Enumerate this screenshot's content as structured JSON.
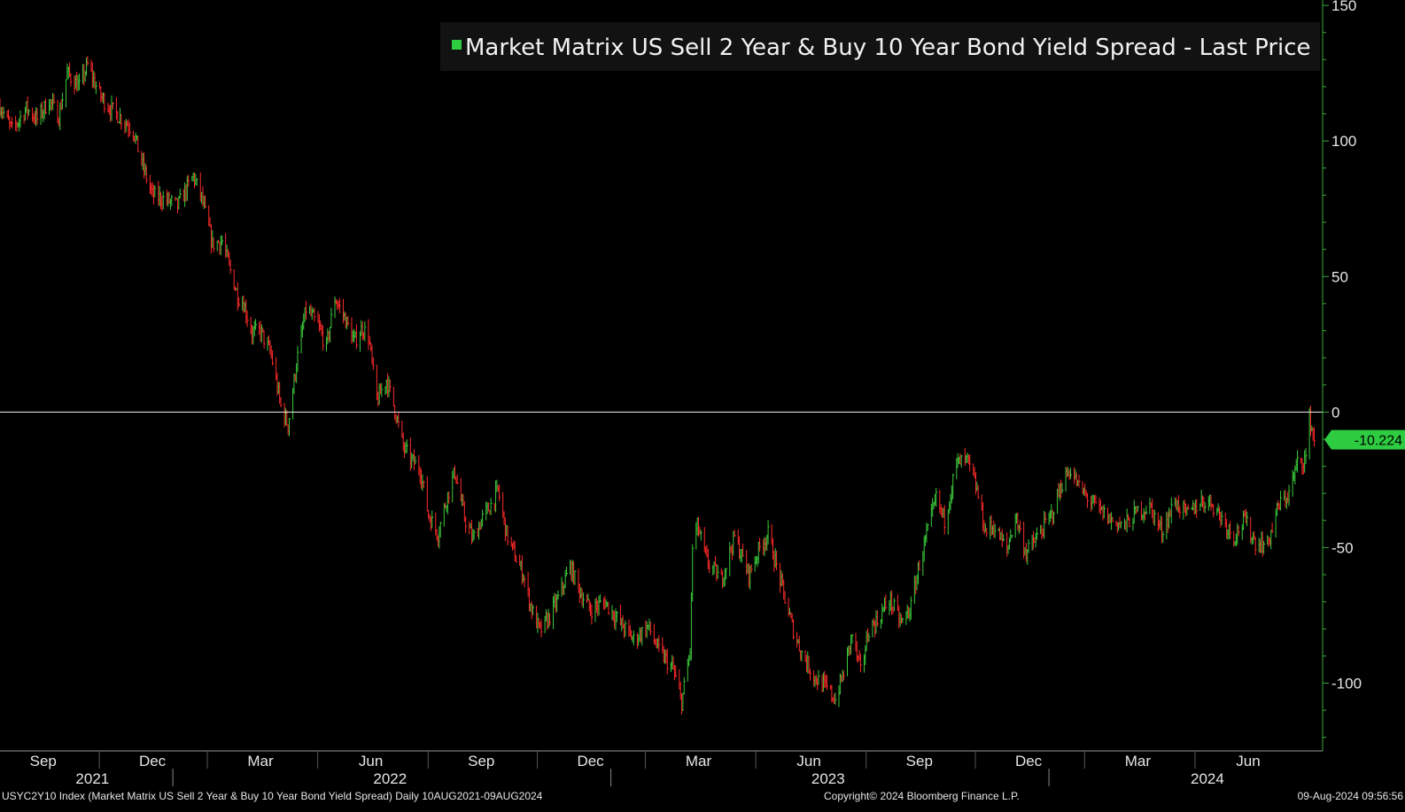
{
  "chart_data": {
    "type": "line",
    "title": "Market Matrix US Sell 2 Year & Buy 10 Year Bond Yield Spread - Last Price",
    "xlabel": "",
    "ylabel": "",
    "ylim": [
      -125,
      152
    ],
    "xlim": [
      "2021-08-10",
      "2024-08-16"
    ],
    "grid": false,
    "legend": "top-right",
    "colors": {
      "up": "#3ccb3c",
      "down": "#ff2a2a",
      "neutral": "#e8a020",
      "axis": "#3aaa3a",
      "zero_line": "#f0f0f0",
      "legend_swatch": "#2ecc40",
      "last_price_tag": "#2ecc40",
      "title_box": "#121212"
    },
    "y_ticks": [
      150,
      100,
      50,
      0,
      -50,
      -100
    ],
    "y_tick_labels": [
      "150",
      "100",
      "50",
      "0",
      "-50",
      "-100"
    ],
    "x_month_ticks": [
      {
        "label": "Sep",
        "date": "2021-09-15"
      },
      {
        "label": "Dec",
        "date": "2021-12-15"
      },
      {
        "label": "Mar",
        "date": "2022-03-15"
      },
      {
        "label": "Jun",
        "date": "2022-06-15"
      },
      {
        "label": "Sep",
        "date": "2022-09-15"
      },
      {
        "label": "Dec",
        "date": "2022-12-15"
      },
      {
        "label": "Mar",
        "date": "2023-03-15"
      },
      {
        "label": "Jun",
        "date": "2023-06-15"
      },
      {
        "label": "Sep",
        "date": "2023-09-15"
      },
      {
        "label": "Dec",
        "date": "2023-12-15"
      },
      {
        "label": "Mar",
        "date": "2024-03-15"
      },
      {
        "label": "Jun",
        "date": "2024-06-15"
      }
    ],
    "x_year_labels": [
      {
        "label": "2021",
        "date": "2021-10-26"
      },
      {
        "label": "2022",
        "date": "2022-07-01"
      },
      {
        "label": "2023",
        "date": "2023-07-01"
      },
      {
        "label": "2024",
        "date": "2024-05-12"
      }
    ],
    "x_year_dividers": [
      "2022-01-01",
      "2023-01-01",
      "2024-01-01"
    ],
    "reference_line": 0,
    "last_price": "-10.224",
    "last_price_value": -10.224,
    "series": [
      {
        "name": "Market Matrix US Sell 2 Year & Buy 10 Year Bond Yield Spread - Last Price",
        "x": [
          "2021-08-10",
          "2021-08-20",
          "2021-09-01",
          "2021-09-10",
          "2021-09-20",
          "2021-09-28",
          "2021-10-05",
          "2021-10-15",
          "2021-10-22",
          "2021-11-01",
          "2021-11-10",
          "2021-11-20",
          "2021-11-29",
          "2021-12-06",
          "2021-12-15",
          "2021-12-28",
          "2022-01-05",
          "2022-01-18",
          "2022-01-25",
          "2022-02-03",
          "2022-02-11",
          "2022-02-24",
          "2022-03-01",
          "2022-03-08",
          "2022-03-15",
          "2022-03-24",
          "2022-04-01",
          "2022-04-07",
          "2022-04-14",
          "2022-04-22",
          "2022-05-02",
          "2022-05-09",
          "2022-05-16",
          "2022-05-24",
          "2022-06-01",
          "2022-06-08",
          "2022-06-13",
          "2022-06-20",
          "2022-06-28",
          "2022-07-05",
          "2022-07-12",
          "2022-07-19",
          "2022-07-26",
          "2022-08-02",
          "2022-08-10",
          "2022-08-17",
          "2022-08-24",
          "2022-09-01",
          "2022-09-08",
          "2022-09-15",
          "2022-09-22",
          "2022-09-29",
          "2022-10-06",
          "2022-10-13",
          "2022-10-20",
          "2022-10-27",
          "2022-11-03",
          "2022-11-10",
          "2022-11-17",
          "2022-11-28",
          "2022-12-07",
          "2022-12-15",
          "2022-12-27",
          "2023-01-09",
          "2023-01-20",
          "2023-02-01",
          "2023-02-10",
          "2023-02-22",
          "2023-03-01",
          "2023-03-08",
          "2023-03-10",
          "2023-03-14",
          "2023-03-22",
          "2023-04-03",
          "2023-04-14",
          "2023-04-26",
          "2023-05-05",
          "2023-05-12",
          "2023-05-22",
          "2023-06-01",
          "2023-06-09",
          "2023-06-20",
          "2023-06-30",
          "2023-07-07",
          "2023-07-14",
          "2023-07-21",
          "2023-07-28",
          "2023-08-04",
          "2023-08-11",
          "2023-08-21",
          "2023-08-31",
          "2023-09-08",
          "2023-09-15",
          "2023-09-22",
          "2023-09-29",
          "2023-10-06",
          "2023-10-16",
          "2023-10-25",
          "2023-11-02",
          "2023-11-09",
          "2023-11-16",
          "2023-11-27",
          "2023-12-04",
          "2023-12-13",
          "2023-12-21",
          "2024-01-03",
          "2024-01-12",
          "2024-01-19",
          "2024-01-26",
          "2024-02-05",
          "2024-02-14",
          "2024-02-22",
          "2024-03-04",
          "2024-03-14",
          "2024-03-25",
          "2024-04-04",
          "2024-04-15",
          "2024-04-25",
          "2024-05-06",
          "2024-05-15",
          "2024-05-24",
          "2024-06-03",
          "2024-06-12",
          "2024-06-21",
          "2024-07-01",
          "2024-07-10",
          "2024-07-19",
          "2024-07-26",
          "2024-08-02",
          "2024-08-05",
          "2024-08-09"
        ],
        "y": [
          113,
          104,
          112,
          108,
          115,
          109,
          125,
          120,
          128,
          117,
          112,
          108,
          104,
          92,
          80,
          78,
          76,
          87,
          79,
          62,
          63,
          43,
          40,
          29,
          30,
          21,
          2,
          -5,
          18,
          38,
          32,
          24,
          42,
          35,
          26,
          31,
          28,
          4,
          12,
          1,
          -13,
          -18,
          -21,
          -38,
          -45,
          -32,
          -22,
          -39,
          -47,
          -40,
          -35,
          -29,
          -45,
          -53,
          -60,
          -73,
          -81,
          -76,
          -70,
          -57,
          -67,
          -73,
          -70,
          -78,
          -84,
          -79,
          -88,
          -95,
          -107,
          -88,
          -50,
          -42,
          -55,
          -62,
          -46,
          -60,
          -50,
          -45,
          -62,
          -79,
          -89,
          -98,
          -102,
          -106,
          -96,
          -82,
          -96,
          -80,
          -77,
          -69,
          -78,
          -72,
          -56,
          -44,
          -32,
          -40,
          -19,
          -18,
          -29,
          -44,
          -42,
          -51,
          -38,
          -52,
          -47,
          -38,
          -26,
          -21,
          -28,
          -33,
          -37,
          -40,
          -42,
          -37,
          -35,
          -44,
          -33,
          -38,
          -33,
          -33,
          -39,
          -46,
          -40,
          -48,
          -49,
          -35,
          -30,
          -19,
          -17,
          -2,
          -10
        ]
      }
    ]
  },
  "footer": {
    "index_text": "USYC2Y10 Index (Market Matrix US Sell 2 Year & Buy 10 Year Bond Yield Spread)  Daily 10AUG2021-09AUG2024",
    "copyright": "Copyright© 2024 Bloomberg Finance L.P.",
    "timestamp": "09-Aug-2024 09:56:56"
  }
}
